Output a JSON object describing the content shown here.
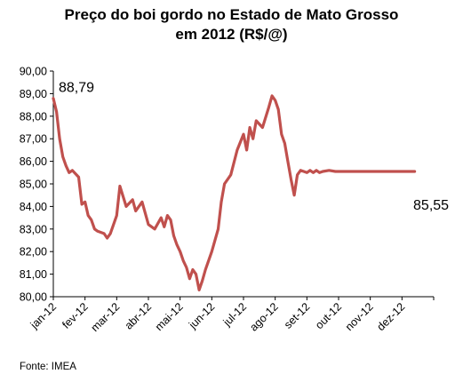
{
  "chart_data": {
    "type": "line",
    "title": "Preço do boi gordo no Estado de Mato Grosso",
    "subtitle": "em 2012 (R$/@)",
    "xlabel": "",
    "ylabel": "",
    "ylim": [
      80,
      90
    ],
    "y_ticks": [
      "80,00",
      "81,00",
      "82,00",
      "83,00",
      "84,00",
      "85,00",
      "86,00",
      "87,00",
      "88,00",
      "89,00",
      "90,00"
    ],
    "x_tick_labels": [
      "jan-12",
      "fev-12",
      "mar-12",
      "abr-12",
      "mai-12",
      "jun-12",
      "jul-12",
      "ago-12",
      "set-12",
      "out-12",
      "nov-12",
      "dez-12"
    ],
    "grid": false,
    "line_color": "#c0504d",
    "series": [
      {
        "x": [
          0.0,
          0.1,
          0.2,
          0.3,
          0.4,
          0.5,
          0.6,
          0.8,
          0.9,
          1.0,
          1.1,
          1.2,
          1.3,
          1.4,
          1.6,
          1.7,
          1.8,
          2.0,
          2.1,
          2.3,
          2.5,
          2.6,
          2.8,
          3.0,
          3.2,
          3.4,
          3.5,
          3.6,
          3.7,
          3.8,
          3.9,
          4.0,
          4.1,
          4.2,
          4.3,
          4.4,
          4.5,
          4.6,
          4.7,
          4.8,
          5.0,
          5.2,
          5.3,
          5.4,
          5.6,
          5.8,
          6.0,
          6.1,
          6.2,
          6.3,
          6.4,
          6.6,
          6.8,
          6.9,
          7.0,
          7.1,
          7.2,
          7.3,
          7.4,
          7.5,
          7.6,
          7.7,
          7.8,
          7.9,
          8.0,
          8.1,
          8.2,
          8.3,
          8.4,
          8.5,
          8.7,
          8.9,
          9.0,
          9.2,
          9.4,
          9.6,
          9.8,
          10.0,
          10.1,
          10.2,
          10.3,
          10.4,
          10.5,
          10.6,
          10.7,
          10.8,
          10.9,
          11.0,
          11.1,
          11.2,
          11.3,
          11.4
        ],
        "y": [
          88.79,
          88.2,
          87.0,
          86.2,
          85.8,
          85.5,
          85.6,
          85.3,
          84.1,
          84.2,
          83.6,
          83.4,
          83.0,
          82.9,
          82.8,
          82.6,
          82.8,
          83.6,
          84.9,
          84.0,
          84.3,
          83.8,
          84.2,
          83.2,
          83.0,
          83.5,
          83.1,
          83.6,
          83.4,
          82.7,
          82.3,
          82.0,
          81.6,
          81.3,
          80.8,
          81.2,
          81.0,
          80.3,
          80.7,
          81.2,
          82.0,
          83.0,
          84.2,
          85.0,
          85.4,
          86.5,
          87.2,
          86.5,
          87.5,
          87.0,
          87.8,
          87.5,
          88.4,
          88.9,
          88.7,
          88.3,
          87.2,
          86.8,
          86.0,
          85.2,
          84.5,
          85.4,
          85.6,
          85.55,
          85.5,
          85.6,
          85.5,
          85.6,
          85.5,
          85.55,
          85.6,
          85.55,
          85.55,
          85.55,
          85.55,
          85.55,
          85.55,
          85.55,
          85.55,
          85.55,
          85.55,
          85.55,
          85.55,
          85.55,
          85.55,
          85.55,
          85.55,
          85.55,
          85.55,
          85.55,
          85.55,
          85.55
        ]
      }
    ],
    "annotations": [
      {
        "text": "88,79",
        "x": 0.0,
        "y": 88.79,
        "position": "above-right"
      },
      {
        "text": "85,55",
        "x": 11.3,
        "y": 85.55,
        "position": "below"
      }
    ]
  },
  "source": "Fonte: IMEA"
}
